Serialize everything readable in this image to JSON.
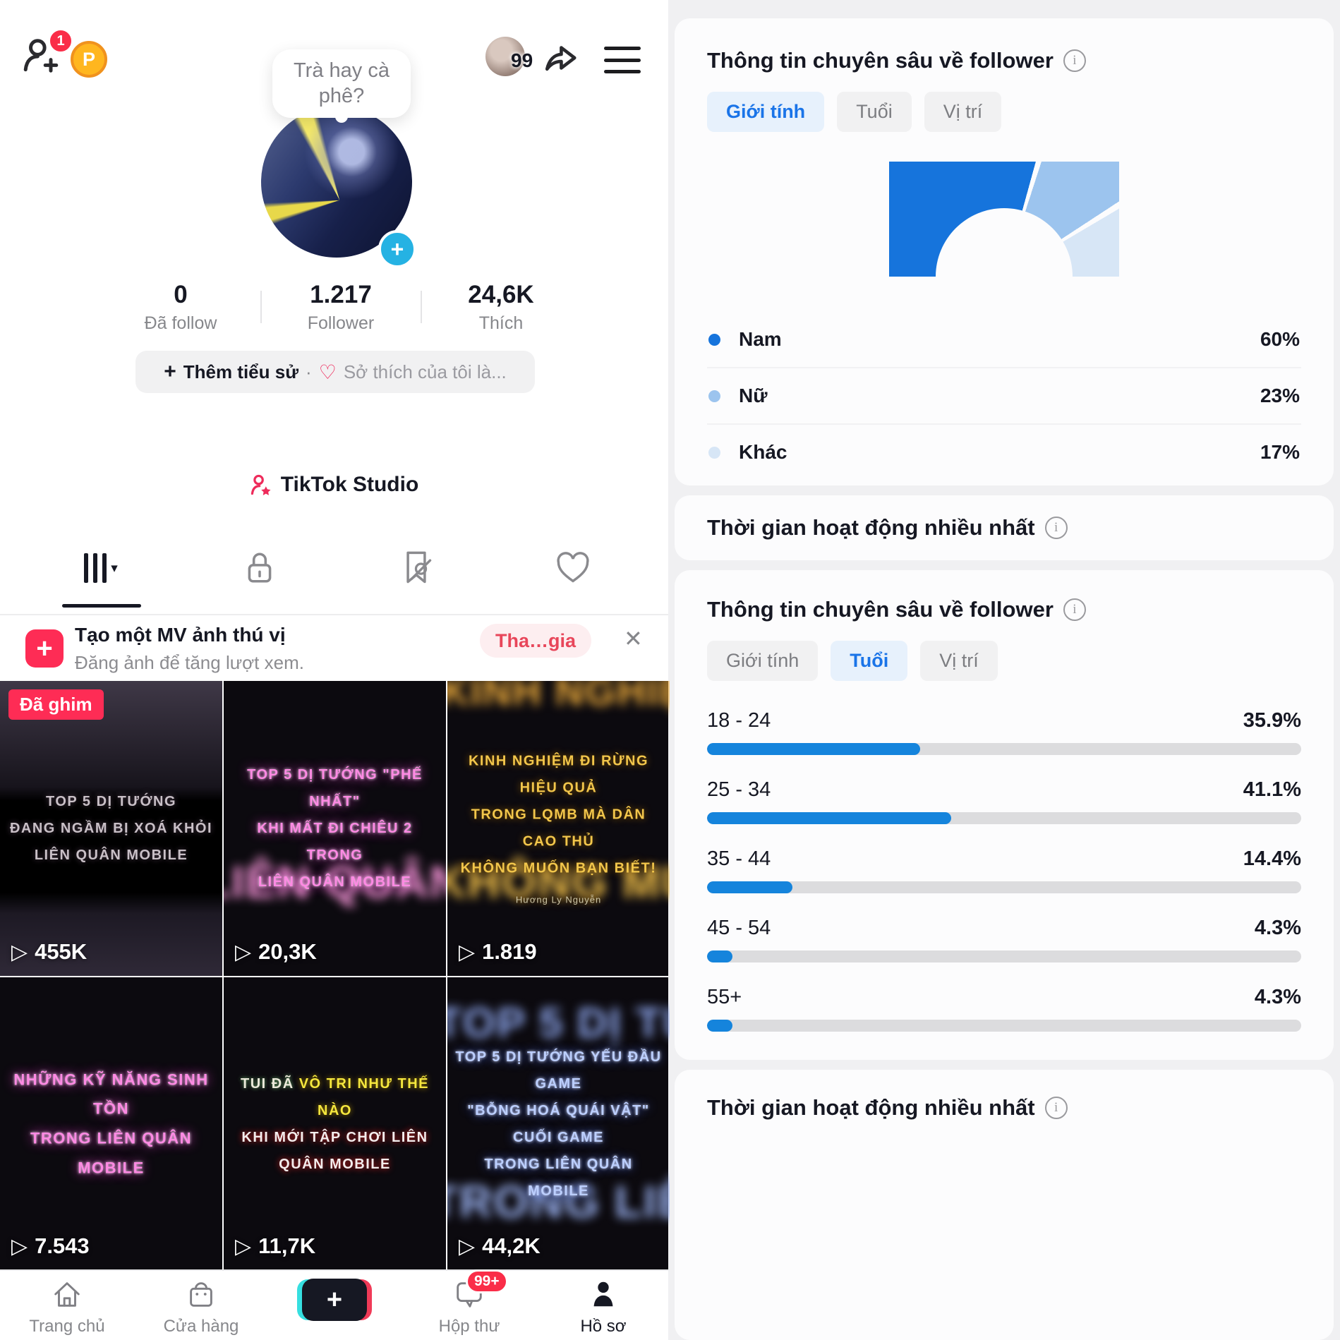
{
  "accent": {
    "tiktok_red": "#fe2c55",
    "blue": "#1a74e8",
    "gauge_nam": "#1674dc",
    "gauge_nu": "#9cc4ee",
    "gauge_khac": "#d7e6f6",
    "bar_fill": "#1584dc"
  },
  "profile": {
    "friend_badge": "1",
    "coin_label": "P",
    "avatar_badge_count": "99",
    "bubble_text": "Trà hay cà phê?",
    "stats": [
      {
        "value": "0",
        "label": "Đã follow"
      },
      {
        "value": "1.217",
        "label": "Follower"
      },
      {
        "value": "24,6K",
        "label": "Thích"
      }
    ],
    "bio_button": {
      "plus": "+",
      "bold": "Thêm tiểu sử",
      "dot": "·",
      "rest": "Sở thích của tôi là..."
    },
    "studio_label": "TikTok Studio",
    "grid_caret": "▾"
  },
  "banner": {
    "title": "Tạo một MV ảnh thú vị",
    "subtitle": "Đăng ảnh để tăng lượt xem.",
    "action": "Tha…gia",
    "close": "✕"
  },
  "grid": {
    "pinned_badge": "Đã ghim",
    "play_glyph": "▷",
    "videos": [
      {
        "lines": [
          "TOP 5 DỊ TƯỚNG",
          "ĐANG NGẦM BỊ XOÁ KHỎI",
          "LIÊN QUÂN MOBILE"
        ],
        "views": "455K"
      },
      {
        "lines": [
          "TOP 5 DỊ TƯỚNG \"PHẾ NHẤT\"",
          "KHI MẤT ĐI CHIÊU 2 TRONG",
          "LIÊN QUÂN MOBILE"
        ],
        "views": "20,3K"
      },
      {
        "lines": [
          "KINH NGHIỆM ĐI RỪNG HIỆU QUẢ",
          "TRONG LQMB MÀ DÂN CAO THỦ",
          "KHÔNG MUỐN BẠN BIẾT!"
        ],
        "credit": "Hương Ly Nguyễn",
        "views": "1.819"
      },
      {
        "lines": [
          "NHỮNG KỸ NĂNG SINH TỒN",
          "TRONG LIÊN QUÂN MOBILE"
        ],
        "views": "7.543"
      },
      {
        "l1a": "TUI ĐÃ ",
        "l1b": "VÔ TRI NHƯ THẾ NÀO",
        "l2": "KHI MỚI TẬP CHƠI LIÊN QUÂN MOBILE",
        "views": "11,7K"
      },
      {
        "lines": [
          "TOP 5 DỊ TƯỚNG YẾU ĐẦU GAME",
          "\"BỖNG HOÁ QUÁI VẬT\" CUỐI GAME",
          "TRONG LIÊN QUÂN MOBILE"
        ],
        "views": "44,2K"
      }
    ]
  },
  "nav": {
    "home": "Trang chủ",
    "shop": "Cửa hàng",
    "inbox": "Hộp thư",
    "inbox_badge": "99+",
    "profile": "Hồ sơ",
    "create": "+"
  },
  "insights": {
    "follower_title": "Thông tin chuyên sâu về follower",
    "activity_title": "Thời gian hoạt động nhiều nhất",
    "tabs": [
      "Giới tính",
      "Tuổi",
      "Vị trí"
    ],
    "gender": {
      "legend": [
        {
          "label": "Nam",
          "pct": 60,
          "pct_label": "60%",
          "color": "#1674dc"
        },
        {
          "label": "Nữ",
          "pct": 23,
          "pct_label": "23%",
          "color": "#9cc4ee"
        },
        {
          "label": "Khác",
          "pct": 17,
          "pct_label": "17%",
          "color": "#d7e6f6"
        }
      ]
    },
    "age": {
      "rows": [
        {
          "label": "18 - 24",
          "pct": 35.9,
          "pct_label": "35.9%"
        },
        {
          "label": "25 - 34",
          "pct": 41.1,
          "pct_label": "41.1%"
        },
        {
          "label": "35 - 44",
          "pct": 14.4,
          "pct_label": "14.4%"
        },
        {
          "label": "45 - 54",
          "pct": 4.3,
          "pct_label": "4.3%"
        },
        {
          "label": "55+",
          "pct": 4.3,
          "pct_label": "4.3%"
        }
      ]
    }
  },
  "chart_data": [
    {
      "type": "pie",
      "variant": "semicircle-donut",
      "title": "Thông tin chuyên sâu về follower — Giới tính",
      "labels": [
        "Nam",
        "Nữ",
        "Khác"
      ],
      "values": [
        60,
        23,
        17
      ],
      "unit": "%",
      "colors": [
        "#1674dc",
        "#9cc4ee",
        "#d7e6f6"
      ],
      "legend_position": "bottom"
    },
    {
      "type": "bar",
      "orientation": "horizontal",
      "title": "Thông tin chuyên sâu về follower — Tuổi",
      "categories": [
        "18 - 24",
        "25 - 34",
        "35 - 44",
        "45 - 54",
        "55+"
      ],
      "values": [
        35.9,
        41.1,
        14.4,
        4.3,
        4.3
      ],
      "unit": "%",
      "xlim": [
        0,
        100
      ],
      "bar_color": "#1584dc",
      "track_color": "#dcdcde"
    }
  ]
}
